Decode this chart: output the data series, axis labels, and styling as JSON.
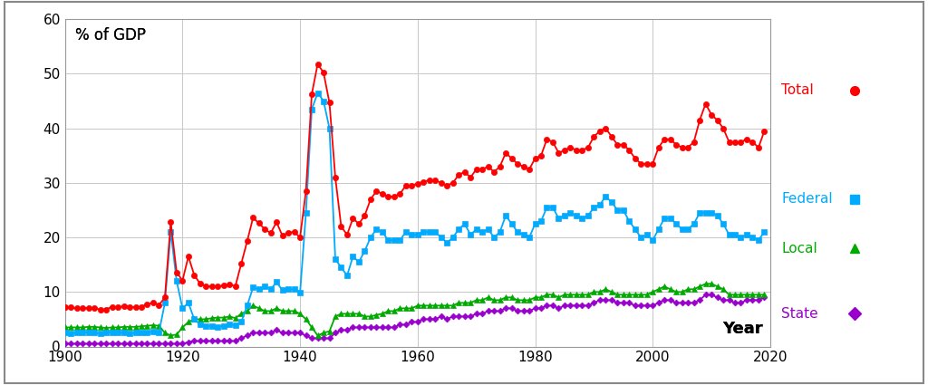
{
  "ylabel": "% of GDP",
  "xlabel": "Year",
  "xlim": [
    1900,
    2020
  ],
  "ylim": [
    0,
    60
  ],
  "yticks": [
    0,
    10,
    20,
    30,
    40,
    50,
    60
  ],
  "xticks": [
    1900,
    1920,
    1940,
    1960,
    1980,
    2000,
    2020
  ],
  "bg_color": "#ffffff",
  "grid_color": "#c8c8c8",
  "series": {
    "Total": {
      "color": "#ff0000",
      "marker": "o",
      "markersize": 4.5,
      "linewidth": 1.3,
      "years": [
        1900,
        1901,
        1902,
        1903,
        1904,
        1905,
        1906,
        1907,
        1908,
        1909,
        1910,
        1911,
        1912,
        1913,
        1914,
        1915,
        1916,
        1917,
        1918,
        1919,
        1920,
        1921,
        1922,
        1923,
        1924,
        1925,
        1926,
        1927,
        1928,
        1929,
        1930,
        1931,
        1932,
        1933,
        1934,
        1935,
        1936,
        1937,
        1938,
        1939,
        1940,
        1941,
        1942,
        1943,
        1944,
        1945,
        1946,
        1947,
        1948,
        1949,
        1950,
        1951,
        1952,
        1953,
        1954,
        1955,
        1956,
        1957,
        1958,
        1959,
        1960,
        1961,
        1962,
        1963,
        1964,
        1965,
        1966,
        1967,
        1968,
        1969,
        1970,
        1971,
        1972,
        1973,
        1974,
        1975,
        1976,
        1977,
        1978,
        1979,
        1980,
        1981,
        1982,
        1983,
        1984,
        1985,
        1986,
        1987,
        1988,
        1989,
        1990,
        1991,
        1992,
        1993,
        1994,
        1995,
        1996,
        1997,
        1998,
        1999,
        2000,
        2001,
        2002,
        2003,
        2004,
        2005,
        2006,
        2007,
        2008,
        2009,
        2010,
        2011,
        2012,
        2013,
        2014,
        2015,
        2016,
        2017,
        2018,
        2019
      ],
      "values": [
        7.3,
        7.2,
        7.0,
        7.0,
        7.1,
        7.0,
        6.8,
        6.8,
        7.3,
        7.2,
        7.4,
        7.3,
        7.2,
        7.3,
        7.8,
        8.0,
        7.6,
        9.0,
        22.8,
        13.6,
        12.1,
        16.5,
        13.1,
        11.5,
        11.1,
        11.0,
        11.0,
        11.2,
        11.3,
        11.1,
        15.2,
        19.3,
        23.6,
        22.6,
        21.5,
        20.8,
        22.8,
        20.3,
        20.9,
        21.0,
        20.0,
        28.5,
        46.3,
        51.8,
        50.2,
        44.7,
        31.0,
        22.0,
        20.5,
        23.5,
        22.5,
        24.0,
        27.0,
        28.5,
        28.0,
        27.5,
        27.5,
        28.0,
        29.5,
        29.5,
        29.8,
        30.2,
        30.5,
        30.5,
        30.0,
        29.5,
        30.0,
        31.5,
        32.0,
        31.0,
        32.5,
        32.5,
        33.0,
        32.0,
        33.0,
        35.5,
        34.5,
        33.5,
        33.0,
        32.5,
        34.5,
        35.0,
        38.0,
        37.5,
        35.5,
        36.0,
        36.5,
        36.0,
        36.0,
        36.5,
        38.5,
        39.5,
        40.0,
        38.5,
        37.0,
        37.0,
        36.0,
        34.5,
        33.5,
        33.5,
        33.5,
        36.5,
        38.0,
        38.0,
        37.0,
        36.5,
        36.5,
        37.5,
        41.5,
        44.5,
        42.5,
        41.5,
        40.0,
        37.5,
        37.5,
        37.5,
        38.0,
        37.5,
        36.5,
        39.5
      ]
    },
    "Federal": {
      "color": "#00aaff",
      "marker": "s",
      "markersize": 4.5,
      "linewidth": 1.3,
      "years": [
        1900,
        1901,
        1902,
        1903,
        1904,
        1905,
        1906,
        1907,
        1908,
        1909,
        1910,
        1911,
        1912,
        1913,
        1914,
        1915,
        1916,
        1917,
        1918,
        1919,
        1920,
        1921,
        1922,
        1923,
        1924,
        1925,
        1926,
        1927,
        1928,
        1929,
        1930,
        1931,
        1932,
        1933,
        1934,
        1935,
        1936,
        1937,
        1938,
        1939,
        1940,
        1941,
        1942,
        1943,
        1944,
        1945,
        1946,
        1947,
        1948,
        1949,
        1950,
        1951,
        1952,
        1953,
        1954,
        1955,
        1956,
        1957,
        1958,
        1959,
        1960,
        1961,
        1962,
        1963,
        1964,
        1965,
        1966,
        1967,
        1968,
        1969,
        1970,
        1971,
        1972,
        1973,
        1974,
        1975,
        1976,
        1977,
        1978,
        1979,
        1980,
        1981,
        1982,
        1983,
        1984,
        1985,
        1986,
        1987,
        1988,
        1989,
        1990,
        1991,
        1992,
        1993,
        1994,
        1995,
        1996,
        1997,
        1998,
        1999,
        2000,
        2001,
        2002,
        2003,
        2004,
        2005,
        2006,
        2007,
        2008,
        2009,
        2010,
        2011,
        2012,
        2013,
        2014,
        2015,
        2016,
        2017,
        2018,
        2019
      ],
      "values": [
        2.5,
        2.4,
        2.5,
        2.5,
        2.6,
        2.5,
        2.4,
        2.5,
        2.6,
        2.5,
        2.5,
        2.4,
        2.5,
        2.5,
        2.6,
        2.7,
        2.6,
        8.0,
        21.0,
        12.0,
        7.0,
        8.0,
        5.0,
        4.0,
        3.8,
        3.7,
        3.6,
        3.8,
        4.0,
        3.9,
        4.5,
        7.5,
        10.8,
        10.5,
        11.0,
        10.5,
        11.8,
        10.3,
        10.5,
        10.5,
        9.8,
        24.5,
        43.5,
        46.5,
        45.0,
        40.0,
        16.0,
        14.5,
        13.0,
        16.5,
        15.5,
        17.5,
        20.0,
        21.5,
        21.0,
        19.5,
        19.5,
        19.5,
        21.0,
        20.5,
        20.5,
        21.0,
        21.0,
        21.0,
        20.0,
        19.0,
        20.0,
        21.5,
        22.5,
        20.5,
        21.5,
        21.0,
        21.5,
        20.0,
        21.0,
        24.0,
        22.5,
        21.0,
        20.5,
        20.0,
        22.5,
        23.0,
        25.5,
        25.5,
        23.5,
        24.0,
        24.5,
        24.0,
        23.5,
        24.0,
        25.5,
        26.0,
        27.5,
        26.5,
        25.0,
        25.0,
        23.0,
        21.5,
        20.0,
        20.5,
        19.5,
        21.5,
        23.5,
        23.5,
        22.5,
        21.5,
        21.5,
        22.5,
        24.5,
        24.5,
        24.5,
        24.0,
        22.5,
        20.5,
        20.5,
        20.0,
        20.5,
        20.0,
        19.5,
        21.0
      ]
    },
    "Local": {
      "color": "#00aa00",
      "marker": "^",
      "markersize": 4.5,
      "linewidth": 1.3,
      "years": [
        1900,
        1901,
        1902,
        1903,
        1904,
        1905,
        1906,
        1907,
        1908,
        1909,
        1910,
        1911,
        1912,
        1913,
        1914,
        1915,
        1916,
        1917,
        1918,
        1919,
        1920,
        1921,
        1922,
        1923,
        1924,
        1925,
        1926,
        1927,
        1928,
        1929,
        1930,
        1931,
        1932,
        1933,
        1934,
        1935,
        1936,
        1937,
        1938,
        1939,
        1940,
        1941,
        1942,
        1943,
        1944,
        1945,
        1946,
        1947,
        1948,
        1949,
        1950,
        1951,
        1952,
        1953,
        1954,
        1955,
        1956,
        1957,
        1958,
        1959,
        1960,
        1961,
        1962,
        1963,
        1964,
        1965,
        1966,
        1967,
        1968,
        1969,
        1970,
        1971,
        1972,
        1973,
        1974,
        1975,
        1976,
        1977,
        1978,
        1979,
        1980,
        1981,
        1982,
        1983,
        1984,
        1985,
        1986,
        1987,
        1988,
        1989,
        1990,
        1991,
        1992,
        1993,
        1994,
        1995,
        1996,
        1997,
        1998,
        1999,
        2000,
        2001,
        2002,
        2003,
        2004,
        2005,
        2006,
        2007,
        2008,
        2009,
        2010,
        2011,
        2012,
        2013,
        2014,
        2015,
        2016,
        2017,
        2018,
        2019
      ],
      "values": [
        3.5,
        3.5,
        3.5,
        3.5,
        3.6,
        3.6,
        3.5,
        3.4,
        3.5,
        3.5,
        3.6,
        3.6,
        3.6,
        3.7,
        3.8,
        3.9,
        3.8,
        2.5,
        2.0,
        2.2,
        3.5,
        4.5,
        5.0,
        5.0,
        5.0,
        5.2,
        5.3,
        5.3,
        5.5,
        5.2,
        6.0,
        6.5,
        7.5,
        7.0,
        6.5,
        6.5,
        7.0,
        6.5,
        6.5,
        6.5,
        6.0,
        5.0,
        3.5,
        2.0,
        2.5,
        2.8,
        5.5,
        6.0,
        6.0,
        6.0,
        6.0,
        5.5,
        5.5,
        5.8,
        6.0,
        6.5,
        6.5,
        7.0,
        7.0,
        7.0,
        7.5,
        7.5,
        7.5,
        7.5,
        7.5,
        7.5,
        7.5,
        8.0,
        8.0,
        8.0,
        8.5,
        8.5,
        9.0,
        8.5,
        8.5,
        9.0,
        9.0,
        8.5,
        8.5,
        8.5,
        9.0,
        9.0,
        9.5,
        9.5,
        9.0,
        9.5,
        9.5,
        9.5,
        9.5,
        9.5,
        10.0,
        10.0,
        10.5,
        10.0,
        9.5,
        9.5,
        9.5,
        9.5,
        9.5,
        9.5,
        10.0,
        10.5,
        11.0,
        10.5,
        10.0,
        10.0,
        10.5,
        10.5,
        11.0,
        11.5,
        11.5,
        11.0,
        10.5,
        9.5,
        9.5,
        9.5,
        9.5,
        9.5,
        9.5,
        9.5
      ]
    },
    "State": {
      "color": "#9900cc",
      "marker": "D",
      "markersize": 3.5,
      "linewidth": 1.3,
      "years": [
        1900,
        1901,
        1902,
        1903,
        1904,
        1905,
        1906,
        1907,
        1908,
        1909,
        1910,
        1911,
        1912,
        1913,
        1914,
        1915,
        1916,
        1917,
        1918,
        1919,
        1920,
        1921,
        1922,
        1923,
        1924,
        1925,
        1926,
        1927,
        1928,
        1929,
        1930,
        1931,
        1932,
        1933,
        1934,
        1935,
        1936,
        1937,
        1938,
        1939,
        1940,
        1941,
        1942,
        1943,
        1944,
        1945,
        1946,
        1947,
        1948,
        1949,
        1950,
        1951,
        1952,
        1953,
        1954,
        1955,
        1956,
        1957,
        1958,
        1959,
        1960,
        1961,
        1962,
        1963,
        1964,
        1965,
        1966,
        1967,
        1968,
        1969,
        1970,
        1971,
        1972,
        1973,
        1974,
        1975,
        1976,
        1977,
        1978,
        1979,
        1980,
        1981,
        1982,
        1983,
        1984,
        1985,
        1986,
        1987,
        1988,
        1989,
        1990,
        1991,
        1992,
        1993,
        1994,
        1995,
        1996,
        1997,
        1998,
        1999,
        2000,
        2001,
        2002,
        2003,
        2004,
        2005,
        2006,
        2007,
        2008,
        2009,
        2010,
        2011,
        2012,
        2013,
        2014,
        2015,
        2016,
        2017,
        2018,
        2019
      ],
      "values": [
        0.5,
        0.5,
        0.5,
        0.5,
        0.5,
        0.5,
        0.5,
        0.5,
        0.5,
        0.5,
        0.5,
        0.5,
        0.5,
        0.5,
        0.5,
        0.5,
        0.5,
        0.5,
        0.5,
        0.5,
        0.5,
        0.8,
        1.0,
        1.0,
        1.0,
        1.0,
        1.0,
        1.0,
        1.0,
        1.0,
        1.5,
        2.0,
        2.5,
        2.5,
        2.5,
        2.5,
        3.0,
        2.5,
        2.5,
        2.5,
        2.5,
        2.0,
        1.5,
        1.5,
        1.5,
        1.5,
        2.5,
        3.0,
        3.0,
        3.5,
        3.5,
        3.5,
        3.5,
        3.5,
        3.5,
        3.5,
        3.5,
        4.0,
        4.0,
        4.5,
        4.5,
        5.0,
        5.0,
        5.0,
        5.5,
        5.0,
        5.5,
        5.5,
        5.5,
        5.5,
        6.0,
        6.0,
        6.5,
        6.5,
        6.5,
        7.0,
        7.0,
        6.5,
        6.5,
        6.5,
        7.0,
        7.0,
        7.5,
        7.5,
        7.0,
        7.5,
        7.5,
        7.5,
        7.5,
        7.5,
        8.0,
        8.5,
        8.5,
        8.5,
        8.0,
        8.0,
        8.0,
        7.5,
        7.5,
        7.5,
        7.5,
        8.0,
        8.5,
        8.5,
        8.0,
        8.0,
        8.0,
        8.0,
        8.5,
        9.5,
        9.5,
        9.0,
        8.5,
        8.5,
        8.0,
        8.0,
        8.5,
        8.5,
        8.5,
        9.0
      ]
    }
  },
  "legend": [
    {
      "label": "Total",
      "color": "#ff0000",
      "marker": "o",
      "x_data": 2018,
      "y_data": 47
    },
    {
      "label": "Federal",
      "color": "#00aaff",
      "marker": "s",
      "x_data": 2018,
      "y_data": 27
    },
    {
      "label": "Local",
      "color": "#00aa00",
      "marker": "^",
      "x_data": 2018,
      "y_data": 18
    },
    {
      "label": "State",
      "color": "#9900cc",
      "marker": "D",
      "x_data": 2018,
      "y_data": 9
    }
  ]
}
